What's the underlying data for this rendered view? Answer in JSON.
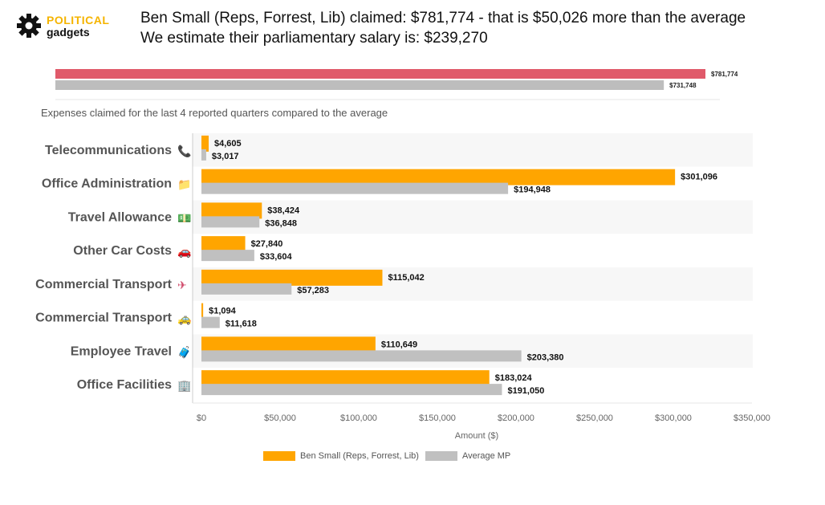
{
  "logo": {
    "top": "POLITICAL",
    "bottom": "gadgets"
  },
  "headline": {
    "line1": "Ben Small (Reps, Forrest, Lib) claimed: $781,774 - that is $50,026 more than the average",
    "line2": "We estimate their parliamentary salary is: $239,270"
  },
  "colors": {
    "member": "#ffa500",
    "average": "#c0c0c0",
    "total_member": "#e05a6a",
    "total_average": "#bdbdbd"
  },
  "chart_data": [
    {
      "type": "bar",
      "orientation": "horizontal",
      "series": [
        {
          "name": "",
          "values": [
            781774
          ],
          "labels": [
            "$781,774"
          ]
        },
        {
          "name": "",
          "values": [
            731748
          ],
          "labels": [
            "$731,748"
          ]
        }
      ]
    },
    {
      "type": "bar",
      "orientation": "horizontal",
      "title": "Expenses claimed for the last 4 reported quarters compared to the average",
      "categories": [
        {
          "label": "Telecommunications",
          "icon": "📞"
        },
        {
          "label": "Office Administration",
          "icon": "📁"
        },
        {
          "label": "Travel Allowance",
          "icon": "💵"
        },
        {
          "label": "Other Car Costs",
          "icon": "🚗"
        },
        {
          "label": "Commercial Transport",
          "icon": "✈"
        },
        {
          "label": "Commercial Transport",
          "icon": "🚕"
        },
        {
          "label": "Employee Travel",
          "icon": "🧳"
        },
        {
          "label": "Office Facilities",
          "icon": "🏢"
        }
      ],
      "series": [
        {
          "name": "Ben Small  (Reps, Forrest, Lib)",
          "values": [
            4605,
            301096,
            38424,
            27840,
            115042,
            1094,
            110649,
            183024
          ],
          "labels": [
            "$4,605",
            "$301,096",
            "$38,424",
            "$27,840",
            "$115,042",
            "$1,094",
            "$110,649",
            "$183,024"
          ]
        },
        {
          "name": "Average MP",
          "values": [
            3017,
            194948,
            36848,
            33604,
            57283,
            11618,
            203380,
            191050
          ],
          "labels": [
            "$3,017",
            "$194,948",
            "$36,848",
            "$33,604",
            "$57,283",
            "$11,618",
            "$203,380",
            "$191,050"
          ]
        }
      ],
      "xlim": [
        0,
        350000
      ],
      "xticks": [
        0,
        50000,
        100000,
        150000,
        200000,
        250000,
        300000,
        350000
      ],
      "xtick_labels": [
        "$0",
        "$50,000",
        "$100,000",
        "$150,000",
        "$200,000",
        "$250,000",
        "$300,000",
        "$350,000"
      ],
      "xlabel": "Amount ($)",
      "legend": "bottom"
    }
  ]
}
